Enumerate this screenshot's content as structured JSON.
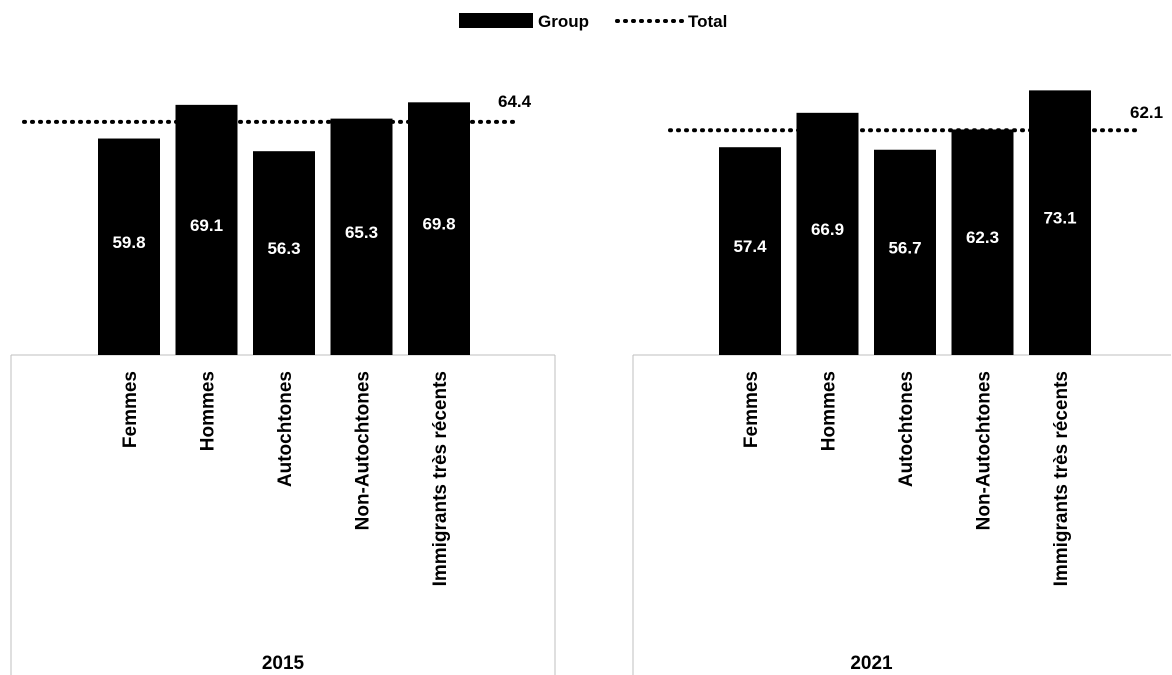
{
  "chart_data": {
    "type": "bar",
    "legend": {
      "position": "top-center",
      "items": [
        {
          "key": "group",
          "label": "Group",
          "style": "bar"
        },
        {
          "key": "total",
          "label": "Total",
          "style": "dotted-line"
        }
      ]
    },
    "colors": {
      "bar": "#000000",
      "bar_label": "#ffffff",
      "axis": "#bfbfbf",
      "total_line": "#000000"
    },
    "ylim": [
      0,
      75
    ],
    "grid": false,
    "panels": [
      {
        "year": "2015",
        "categories": [
          "Femmes",
          "Hommes",
          "Autochtones",
          "Non-Autochtones",
          "Immigrants très récents"
        ],
        "values": [
          59.8,
          69.1,
          56.3,
          65.3,
          69.8
        ],
        "value_labels": [
          "59.8",
          "69.1",
          "56.3",
          "65.3",
          "69.8"
        ],
        "total": 64.4,
        "total_label": "64.4"
      },
      {
        "year": "2021",
        "categories": [
          "Femmes",
          "Hommes",
          "Autochtones",
          "Non-Autochtones",
          "Immigrants très récents"
        ],
        "values": [
          57.4,
          66.9,
          56.7,
          62.3,
          73.1
        ],
        "value_labels": [
          "57.4",
          "66.9",
          "56.7",
          "62.3",
          "73.1"
        ],
        "total": 62.1,
        "total_label": "62.1"
      }
    ]
  }
}
